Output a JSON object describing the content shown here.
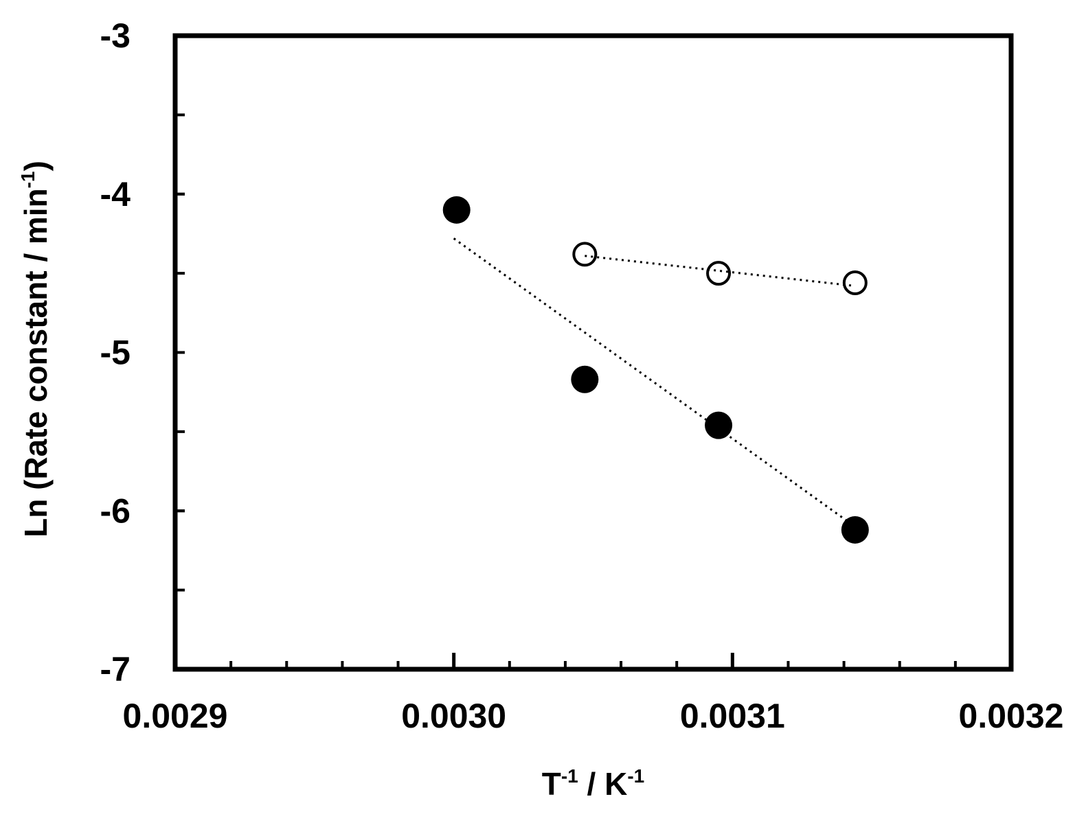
{
  "chart_data": {
    "type": "scatter",
    "xlabel": {
      "base_1": "T",
      "exp_1": "-1",
      "middle": " / K",
      "exp_2": "-1"
    },
    "ylabel": {
      "base": "Ln (Rate constant / min",
      "exp": "-1",
      "end": ")"
    },
    "xlim": [
      0.0029,
      0.0032
    ],
    "ylim": [
      -7,
      -3
    ],
    "x_major_ticks": [
      0.0029,
      0.003,
      0.0031,
      0.0032
    ],
    "x_tick_labels": [
      "0.0029",
      "0.0030",
      "0.0031",
      "0.0032"
    ],
    "x_minor_step": 2e-05,
    "y_major_ticks": [
      -7,
      -6,
      -5,
      -4,
      -3
    ],
    "y_tick_labels": [
      "-7",
      "-6",
      "-5",
      "-4",
      "-3"
    ],
    "y_minor_step": 0.5,
    "grid": false,
    "legend": "none",
    "series": [
      {
        "marker": "filled-circle",
        "color": "#000000",
        "x": [
          0.003001,
          0.003047,
          0.003095,
          0.003144
        ],
        "y": [
          -4.1,
          -5.17,
          -5.46,
          -6.12
        ],
        "trendline": {
          "style": "dotted",
          "x": [
            0.003,
            0.003144
          ],
          "y": [
            -4.28,
            -6.1
          ]
        }
      },
      {
        "marker": "open-circle",
        "color": "#000000",
        "x": [
          0.003047,
          0.003095,
          0.003144
        ],
        "y": [
          -4.38,
          -4.5,
          -4.56
        ],
        "trendline": {
          "style": "dotted",
          "x": [
            0.003047,
            0.003144
          ],
          "y": [
            -4.39,
            -4.58
          ]
        }
      }
    ]
  }
}
